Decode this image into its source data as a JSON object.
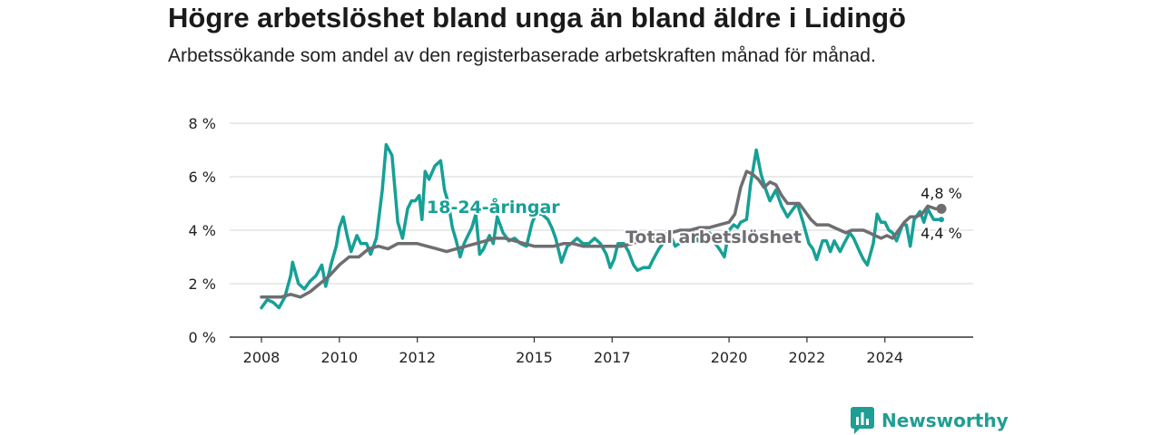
{
  "title": "Högre arbetslöshet bland unga än bland äldre i Lidingö",
  "subtitle": "Arbetssökande som andel av den registerbaserade arbetskraften månad för månad.",
  "brand": "Newsworthy",
  "colors": {
    "youth": "#16a096",
    "total": "#6e6e72",
    "brand": "#1f9e93"
  },
  "chart_data": {
    "type": "line",
    "ylim": [
      0,
      8
    ],
    "yticks": [
      0,
      2,
      4,
      6,
      8
    ],
    "ytick_labels": [
      "0 %",
      "2 %",
      "4 %",
      "6 %",
      "8 %"
    ],
    "xlim": [
      2008,
      2025.8
    ],
    "xticks": [
      2008,
      2010,
      2012,
      2015,
      2017,
      2020,
      2022,
      2024
    ],
    "xtick_labels": [
      "2008",
      "2010",
      "2012",
      "2015",
      "2017",
      "2020",
      "2022",
      "2024"
    ],
    "series": [
      {
        "name": "Total arbetslöshet",
        "end_label": "4,8 %",
        "points": [
          [
            2008.0,
            1.5
          ],
          [
            2008.25,
            1.5
          ],
          [
            2008.5,
            1.5
          ],
          [
            2008.75,
            1.6
          ],
          [
            2009.0,
            1.5
          ],
          [
            2009.25,
            1.7
          ],
          [
            2009.5,
            2.0
          ],
          [
            2009.75,
            2.3
          ],
          [
            2010.0,
            2.7
          ],
          [
            2010.25,
            3.0
          ],
          [
            2010.5,
            3.0
          ],
          [
            2010.75,
            3.3
          ],
          [
            2011.0,
            3.4
          ],
          [
            2011.25,
            3.3
          ],
          [
            2011.5,
            3.5
          ],
          [
            2011.75,
            3.5
          ],
          [
            2012.0,
            3.5
          ],
          [
            2012.25,
            3.4
          ],
          [
            2012.5,
            3.3
          ],
          [
            2012.75,
            3.2
          ],
          [
            2013.0,
            3.3
          ],
          [
            2013.25,
            3.4
          ],
          [
            2013.5,
            3.5
          ],
          [
            2013.75,
            3.6
          ],
          [
            2014.0,
            3.7
          ],
          [
            2014.25,
            3.7
          ],
          [
            2014.5,
            3.6
          ],
          [
            2014.75,
            3.5
          ],
          [
            2015.0,
            3.4
          ],
          [
            2015.25,
            3.4
          ],
          [
            2015.5,
            3.4
          ],
          [
            2015.75,
            3.5
          ],
          [
            2016.0,
            3.5
          ],
          [
            2016.25,
            3.4
          ],
          [
            2016.5,
            3.4
          ],
          [
            2016.75,
            3.4
          ],
          [
            2017.0,
            3.4
          ],
          [
            2017.25,
            3.4
          ],
          [
            2017.5,
            3.5
          ],
          [
            2017.75,
            3.6
          ],
          [
            2018.0,
            3.7
          ],
          [
            2018.25,
            3.8
          ],
          [
            2018.5,
            3.9
          ],
          [
            2018.75,
            4.0
          ],
          [
            2019.0,
            4.0
          ],
          [
            2019.25,
            4.1
          ],
          [
            2019.5,
            4.1
          ],
          [
            2019.75,
            4.2
          ],
          [
            2020.0,
            4.3
          ],
          [
            2020.15,
            4.6
          ],
          [
            2020.3,
            5.6
          ],
          [
            2020.45,
            6.2
          ],
          [
            2020.6,
            6.1
          ],
          [
            2020.75,
            5.9
          ],
          [
            2020.9,
            5.6
          ],
          [
            2021.05,
            5.8
          ],
          [
            2021.2,
            5.7
          ],
          [
            2021.35,
            5.3
          ],
          [
            2021.5,
            5.0
          ],
          [
            2021.65,
            5.0
          ],
          [
            2021.8,
            5.0
          ],
          [
            2021.95,
            4.7
          ],
          [
            2022.1,
            4.4
          ],
          [
            2022.25,
            4.2
          ],
          [
            2022.4,
            4.2
          ],
          [
            2022.55,
            4.2
          ],
          [
            2022.7,
            4.1
          ],
          [
            2022.85,
            4.0
          ],
          [
            2023.0,
            3.9
          ],
          [
            2023.15,
            4.0
          ],
          [
            2023.3,
            4.0
          ],
          [
            2023.45,
            4.0
          ],
          [
            2023.6,
            3.9
          ],
          [
            2023.75,
            3.8
          ],
          [
            2023.9,
            3.7
          ],
          [
            2024.05,
            3.8
          ],
          [
            2024.2,
            3.7
          ],
          [
            2024.35,
            4.0
          ],
          [
            2024.5,
            4.3
          ],
          [
            2024.65,
            4.5
          ],
          [
            2024.8,
            4.5
          ],
          [
            2024.95,
            4.6
          ],
          [
            2025.1,
            4.9
          ],
          [
            2025.3,
            4.8
          ],
          [
            2025.45,
            4.8
          ]
        ]
      },
      {
        "name": "18-24-åringar",
        "end_label": "4,4 %",
        "points": [
          [
            2008.0,
            1.1
          ],
          [
            2008.15,
            1.4
          ],
          [
            2008.3,
            1.3
          ],
          [
            2008.45,
            1.1
          ],
          [
            2008.6,
            1.5
          ],
          [
            2008.75,
            2.3
          ],
          [
            2008.8,
            2.8
          ],
          [
            2008.95,
            2.0
          ],
          [
            2009.1,
            1.8
          ],
          [
            2009.25,
            2.1
          ],
          [
            2009.4,
            2.3
          ],
          [
            2009.55,
            2.7
          ],
          [
            2009.65,
            1.9
          ],
          [
            2009.8,
            2.8
          ],
          [
            2009.92,
            3.4
          ],
          [
            2010.0,
            4.1
          ],
          [
            2010.1,
            4.5
          ],
          [
            2010.2,
            3.8
          ],
          [
            2010.3,
            3.2
          ],
          [
            2010.45,
            3.8
          ],
          [
            2010.55,
            3.5
          ],
          [
            2010.7,
            3.5
          ],
          [
            2010.8,
            3.1
          ],
          [
            2010.95,
            3.7
          ],
          [
            2011.1,
            5.5
          ],
          [
            2011.2,
            7.2
          ],
          [
            2011.35,
            6.8
          ],
          [
            2011.5,
            4.3
          ],
          [
            2011.62,
            3.7
          ],
          [
            2011.75,
            4.8
          ],
          [
            2011.85,
            5.1
          ],
          [
            2011.95,
            5.1
          ],
          [
            2012.05,
            5.3
          ],
          [
            2012.12,
            4.4
          ],
          [
            2012.2,
            6.2
          ],
          [
            2012.3,
            5.9
          ],
          [
            2012.45,
            6.4
          ],
          [
            2012.6,
            6.6
          ],
          [
            2012.7,
            5.5
          ],
          [
            2012.8,
            5.0
          ],
          [
            2012.9,
            4.1
          ],
          [
            2013.0,
            3.6
          ],
          [
            2013.1,
            3.0
          ],
          [
            2013.2,
            3.5
          ],
          [
            2013.3,
            3.8
          ],
          [
            2013.4,
            4.1
          ],
          [
            2013.5,
            4.6
          ],
          [
            2013.6,
            3.1
          ],
          [
            2013.7,
            3.3
          ],
          [
            2013.85,
            3.8
          ],
          [
            2013.95,
            3.5
          ],
          [
            2014.05,
            4.5
          ],
          [
            2014.2,
            3.9
          ],
          [
            2014.35,
            3.6
          ],
          [
            2014.5,
            3.7
          ],
          [
            2014.65,
            3.5
          ],
          [
            2014.8,
            3.4
          ],
          [
            2014.95,
            4.3
          ],
          [
            2015.05,
            4.6
          ],
          [
            2015.2,
            4.6
          ],
          [
            2015.35,
            4.4
          ],
          [
            2015.45,
            4.1
          ],
          [
            2015.55,
            3.7
          ],
          [
            2015.7,
            2.8
          ],
          [
            2015.85,
            3.4
          ],
          [
            2015.95,
            3.5
          ],
          [
            2016.1,
            3.7
          ],
          [
            2016.25,
            3.5
          ],
          [
            2016.4,
            3.5
          ],
          [
            2016.55,
            3.7
          ],
          [
            2016.7,
            3.5
          ],
          [
            2016.85,
            3.1
          ],
          [
            2016.95,
            2.6
          ],
          [
            2017.05,
            2.9
          ],
          [
            2017.15,
            3.5
          ],
          [
            2017.3,
            3.5
          ],
          [
            2017.42,
            3.2
          ],
          [
            2017.55,
            2.7
          ],
          [
            2017.65,
            2.5
          ],
          [
            2017.8,
            2.6
          ],
          [
            2017.95,
            2.6
          ],
          [
            2018.05,
            2.9
          ],
          [
            2018.2,
            3.3
          ],
          [
            2018.35,
            3.6
          ],
          [
            2018.5,
            3.8
          ],
          [
            2018.62,
            3.4
          ],
          [
            2018.72,
            3.5
          ],
          [
            2018.85,
            3.6
          ],
          [
            2018.95,
            3.7
          ],
          [
            2019.1,
            3.9
          ],
          [
            2019.2,
            3.6
          ],
          [
            2019.3,
            3.7
          ],
          [
            2019.4,
            3.6
          ],
          [
            2019.5,
            3.9
          ],
          [
            2019.65,
            3.5
          ],
          [
            2019.75,
            3.3
          ],
          [
            2019.88,
            3.0
          ],
          [
            2020.0,
            4.0
          ],
          [
            2020.12,
            4.2
          ],
          [
            2020.22,
            4.1
          ],
          [
            2020.3,
            4.3
          ],
          [
            2020.45,
            4.4
          ],
          [
            2020.55,
            5.7
          ],
          [
            2020.7,
            7.0
          ],
          [
            2020.82,
            6.1
          ],
          [
            2020.95,
            5.5
          ],
          [
            2021.05,
            5.1
          ],
          [
            2021.2,
            5.5
          ],
          [
            2021.35,
            4.9
          ],
          [
            2021.5,
            4.5
          ],
          [
            2021.6,
            4.7
          ],
          [
            2021.75,
            5.0
          ],
          [
            2021.9,
            4.3
          ],
          [
            2022.05,
            3.5
          ],
          [
            2022.15,
            3.3
          ],
          [
            2022.25,
            2.9
          ],
          [
            2022.4,
            3.6
          ],
          [
            2022.5,
            3.6
          ],
          [
            2022.6,
            3.2
          ],
          [
            2022.7,
            3.6
          ],
          [
            2022.85,
            3.2
          ],
          [
            2022.95,
            3.5
          ],
          [
            2023.1,
            3.9
          ],
          [
            2023.2,
            3.7
          ],
          [
            2023.35,
            3.2
          ],
          [
            2023.45,
            2.9
          ],
          [
            2023.55,
            2.7
          ],
          [
            2023.7,
            3.5
          ],
          [
            2023.8,
            4.6
          ],
          [
            2023.9,
            4.3
          ],
          [
            2024.0,
            4.3
          ],
          [
            2024.1,
            4.0
          ],
          [
            2024.2,
            3.9
          ],
          [
            2024.3,
            3.6
          ],
          [
            2024.45,
            4.2
          ],
          [
            2024.55,
            4.2
          ],
          [
            2024.65,
            3.4
          ],
          [
            2024.75,
            4.4
          ],
          [
            2024.9,
            4.7
          ],
          [
            2025.0,
            4.3
          ],
          [
            2025.1,
            4.8
          ],
          [
            2025.25,
            4.4
          ],
          [
            2025.45,
            4.4
          ]
        ]
      }
    ]
  }
}
